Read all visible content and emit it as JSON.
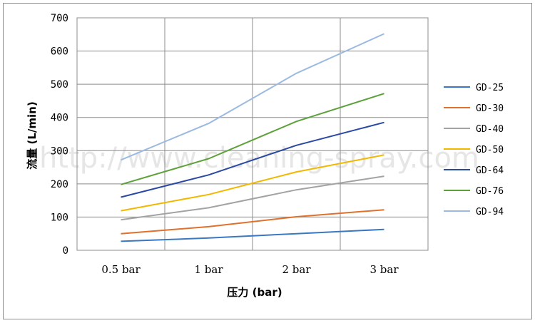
{
  "chart_data": {
    "type": "line",
    "categories": [
      "0.5 bar",
      "1 bar",
      "2 bar",
      "3 bar"
    ],
    "xlabel": "压力 (bar)",
    "ylabel": "流量 (L/min)",
    "ylim": [
      0,
      700
    ],
    "yticks": [
      0,
      100,
      200,
      300,
      400,
      500,
      600,
      700
    ],
    "grid": true,
    "legend": "right",
    "watermark": "http://www.cleaning-spray.com",
    "series": [
      {
        "name": "GD-25",
        "color": "#3b78c2",
        "values": [
          27,
          37,
          50,
          63
        ]
      },
      {
        "name": "GD-30",
        "color": "#e0712c",
        "values": [
          50,
          71,
          101,
          122
        ]
      },
      {
        "name": "GD-40",
        "color": "#a3a3a3",
        "values": [
          92,
          128,
          182,
          223
        ]
      },
      {
        "name": "GD-50",
        "color": "#f2b800",
        "values": [
          119,
          168,
          236,
          287
        ]
      },
      {
        "name": "GD-64",
        "color": "#2b48a3",
        "values": [
          160,
          227,
          316,
          385
        ]
      },
      {
        "name": "GD-76",
        "color": "#5da13a",
        "values": [
          198,
          276,
          388,
          472
        ]
      },
      {
        "name": "GD-94",
        "color": "#9bbae0",
        "values": [
          272,
          382,
          533,
          652
        ]
      }
    ]
  }
}
